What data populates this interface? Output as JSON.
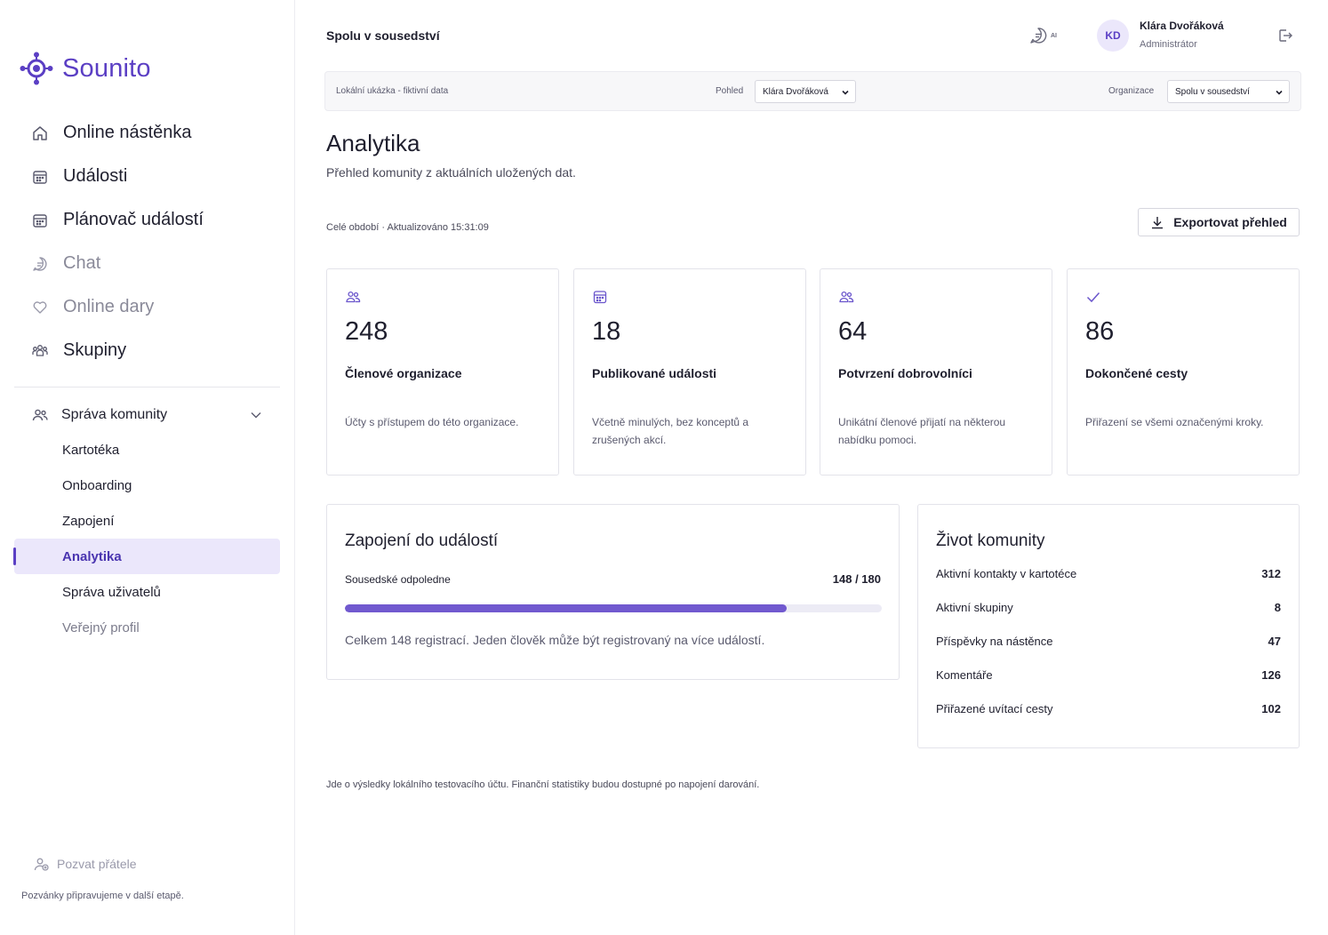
{
  "brand": {
    "name": "Sounito",
    "color": "#5b3fc4"
  },
  "sidebar": {
    "nav": [
      {
        "label": "Online nástěnka",
        "icon": "home-icon",
        "muted": false
      },
      {
        "label": "Události",
        "icon": "calendar-icon",
        "muted": false
      },
      {
        "label": "Plánovač událostí",
        "icon": "calendar-icon",
        "muted": false
      },
      {
        "label": "Chat",
        "icon": "chat-icon",
        "muted": true
      },
      {
        "label": "Online dary",
        "icon": "heart-icon",
        "muted": true
      },
      {
        "label": "Skupiny",
        "icon": "groups-icon",
        "muted": false
      }
    ],
    "section": {
      "label": "Správa komunity",
      "icon": "users-icon"
    },
    "subnav": [
      {
        "label": "Kartotéka",
        "active": false,
        "muted": false
      },
      {
        "label": "Onboarding",
        "active": false,
        "muted": false
      },
      {
        "label": "Zapojení",
        "active": false,
        "muted": false
      },
      {
        "label": "Analytika",
        "active": true,
        "muted": false
      },
      {
        "label": "Správa uživatelů",
        "active": false,
        "muted": false
      },
      {
        "label": "Veřejný profil",
        "active": false,
        "muted": true
      }
    ],
    "invite_label": "Pozvat přátele",
    "invite_note": "Pozvánky připravujeme v další etapě."
  },
  "header": {
    "org_title": "Spolu v sousedství",
    "ai_label": "AI",
    "user": {
      "initials": "KD",
      "name": "Klára Dvořáková",
      "role": "Administrátor"
    }
  },
  "demobar": {
    "note": "Lokální ukázka - fiktivní data",
    "view_label": "Pohled",
    "view_value": "Klára Dvořáková",
    "org_label": "Organizace",
    "org_value": "Spolu v sousedství"
  },
  "page": {
    "title": "Analytika",
    "subtitle": "Přehled komunity z aktuálních uložených dat.",
    "period": "Celé období · Aktualizováno 15:31:09",
    "export_label": "Exportovat přehled"
  },
  "stats": [
    {
      "icon": "users-icon",
      "value": "248",
      "title": "Členové organizace",
      "desc": "Účty s přístupem do této organizace."
    },
    {
      "icon": "calendar-icon",
      "value": "18",
      "title": "Publikované události",
      "desc": "Včetně minulých, bez konceptů a zrušených akcí."
    },
    {
      "icon": "users-icon",
      "value": "64",
      "title": "Potvrzení dobrovolníci",
      "desc": "Unikátní členové přijatí na některou nabídku pomoci."
    },
    {
      "icon": "check-icon",
      "value": "86",
      "title": "Dokončené cesty",
      "desc": "Přiřazení se všemi označenými kroky."
    }
  ],
  "engagement": {
    "title": "Zapojení do událostí",
    "event_name": "Sousedské odpoledne",
    "registered": 148,
    "capacity": 180,
    "count_label": "148 / 180",
    "note": "Celkem 148 registrací. Jeden člověk může být registrovaný na více událostí."
  },
  "community": {
    "title": "Život komunity",
    "rows": [
      {
        "label": "Aktivní kontakty v kartotéce",
        "value": "312"
      },
      {
        "label": "Aktivní skupiny",
        "value": "8"
      },
      {
        "label": "Příspěvky na nástěnce",
        "value": "47"
      },
      {
        "label": "Komentáře",
        "value": "126"
      },
      {
        "label": "Přiřazené uvítací cesty",
        "value": "102"
      }
    ]
  },
  "footer_note": "Jde o výsledky lokálního testovacího účtu. Finanční statistiky budou dostupné po napojení darování."
}
